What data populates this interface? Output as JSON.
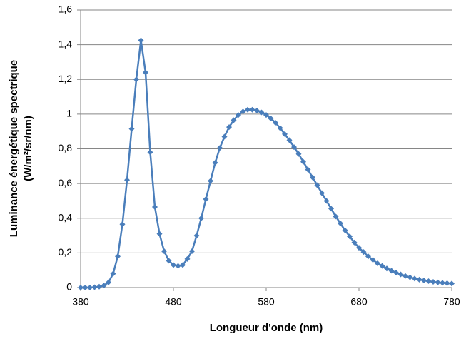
{
  "chart_data": {
    "type": "line",
    "x_label": "Longueur d'onde (nm)",
    "y_label": [
      "Luminance énergétique spectrique",
      "(W/m²/sr/nm)"
    ],
    "x": [
      380,
      385,
      390,
      395,
      400,
      405,
      410,
      415,
      420,
      425,
      430,
      435,
      440,
      445,
      450,
      455,
      460,
      465,
      470,
      475,
      480,
      485,
      490,
      495,
      500,
      505,
      510,
      515,
      520,
      525,
      530,
      535,
      540,
      545,
      550,
      555,
      560,
      565,
      570,
      575,
      580,
      585,
      590,
      595,
      600,
      605,
      610,
      615,
      620,
      625,
      630,
      635,
      640,
      645,
      650,
      655,
      660,
      665,
      670,
      675,
      680,
      685,
      690,
      695,
      700,
      705,
      710,
      715,
      720,
      725,
      730,
      735,
      740,
      745,
      750,
      755,
      760,
      765,
      770,
      775,
      780
    ],
    "series": [
      {
        "color": "#4a7ebb",
        "values": [
          0,
          0,
          0,
          0.002,
          0.005,
          0.012,
          0.03,
          0.08,
          0.18,
          0.365,
          0.62,
          0.915,
          1.2,
          1.425,
          1.24,
          0.78,
          0.465,
          0.31,
          0.21,
          0.155,
          0.13,
          0.125,
          0.13,
          0.165,
          0.21,
          0.3,
          0.4,
          0.51,
          0.615,
          0.72,
          0.805,
          0.87,
          0.925,
          0.965,
          0.995,
          1.015,
          1.025,
          1.025,
          1.02,
          1.01,
          0.995,
          0.975,
          0.95,
          0.92,
          0.885,
          0.85,
          0.81,
          0.77,
          0.725,
          0.68,
          0.635,
          0.59,
          0.545,
          0.5,
          0.455,
          0.41,
          0.37,
          0.33,
          0.295,
          0.26,
          0.23,
          0.205,
          0.18,
          0.16,
          0.14,
          0.125,
          0.11,
          0.097,
          0.086,
          0.076,
          0.067,
          0.059,
          0.052,
          0.046,
          0.041,
          0.037,
          0.033,
          0.03,
          0.027,
          0.025,
          0.023
        ]
      }
    ],
    "xlim": [
      380,
      780
    ],
    "xticks": [
      380,
      480,
      580,
      680,
      780
    ],
    "ylim": [
      0,
      1.6
    ],
    "yticks": [
      0,
      {
        "value": 0.2,
        "label": "0,2"
      },
      {
        "value": 0.4,
        "label": "0,4"
      },
      {
        "value": 0.6,
        "label": "0,6"
      },
      {
        "value": 0.8,
        "label": "0,8"
      },
      1,
      {
        "value": 1.2,
        "label": "1,2"
      },
      {
        "value": 1.4,
        "label": "1,4"
      },
      {
        "value": 1.6,
        "label": "1,6"
      }
    ],
    "grid": true
  }
}
